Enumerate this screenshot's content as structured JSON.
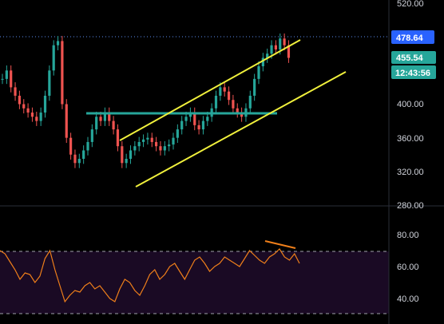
{
  "price_scale": {
    "ticks": [
      "520.00",
      "400.00",
      "360.00",
      "320.00",
      "280.00"
    ],
    "labels": {
      "high": "478.64",
      "last": "455.54",
      "countdown": "12:43:56"
    }
  },
  "rsi_scale": {
    "ticks": [
      "80.00",
      "60.00",
      "40.00"
    ]
  },
  "colors": {
    "up": "#26a69a",
    "down": "#ef5350",
    "channel": "#f0f03c",
    "horizontal_level": "#26a69a",
    "high_line": "#5b8def",
    "rsi_line": "#ef7f1a",
    "rsi_band_fill": "#1a0a24",
    "badge_high": "#2962ff",
    "badge_last": "#26a69a",
    "badge_countdown": "#26a69a"
  },
  "chart_data": {
    "type": "candlestick",
    "ylim": [
      280,
      525
    ],
    "approximate_closes": [
      430,
      440,
      420,
      410,
      400,
      395,
      390,
      385,
      380,
      390,
      410,
      440,
      470,
      475,
      400,
      360,
      340,
      330,
      335,
      345,
      355,
      370,
      385,
      380,
      390,
      380,
      370,
      350,
      330,
      335,
      345,
      350,
      355,
      358,
      360,
      355,
      350,
      345,
      350,
      352,
      360,
      370,
      380,
      385,
      390,
      375,
      370,
      380,
      385,
      395,
      410,
      420,
      415,
      405,
      395,
      390,
      385,
      395,
      410,
      430,
      445,
      455,
      460,
      470,
      465,
      478,
      470,
      455
    ],
    "rsi": {
      "ylim": [
        30,
        85
      ],
      "overbought": 70,
      "oversold": 30,
      "values": [
        70,
        68,
        63,
        58,
        52,
        56,
        55,
        50,
        54,
        65,
        70,
        58,
        48,
        38,
        42,
        45,
        44,
        48,
        50,
        46,
        48,
        44,
        40,
        38,
        46,
        52,
        50,
        45,
        42,
        48,
        55,
        58,
        52,
        55,
        60,
        62,
        57,
        52,
        58,
        64,
        66,
        62,
        57,
        60,
        62,
        66,
        64,
        62,
        60,
        65,
        70,
        67,
        64,
        62,
        66,
        68,
        71,
        66,
        64,
        68,
        62
      ]
    }
  }
}
